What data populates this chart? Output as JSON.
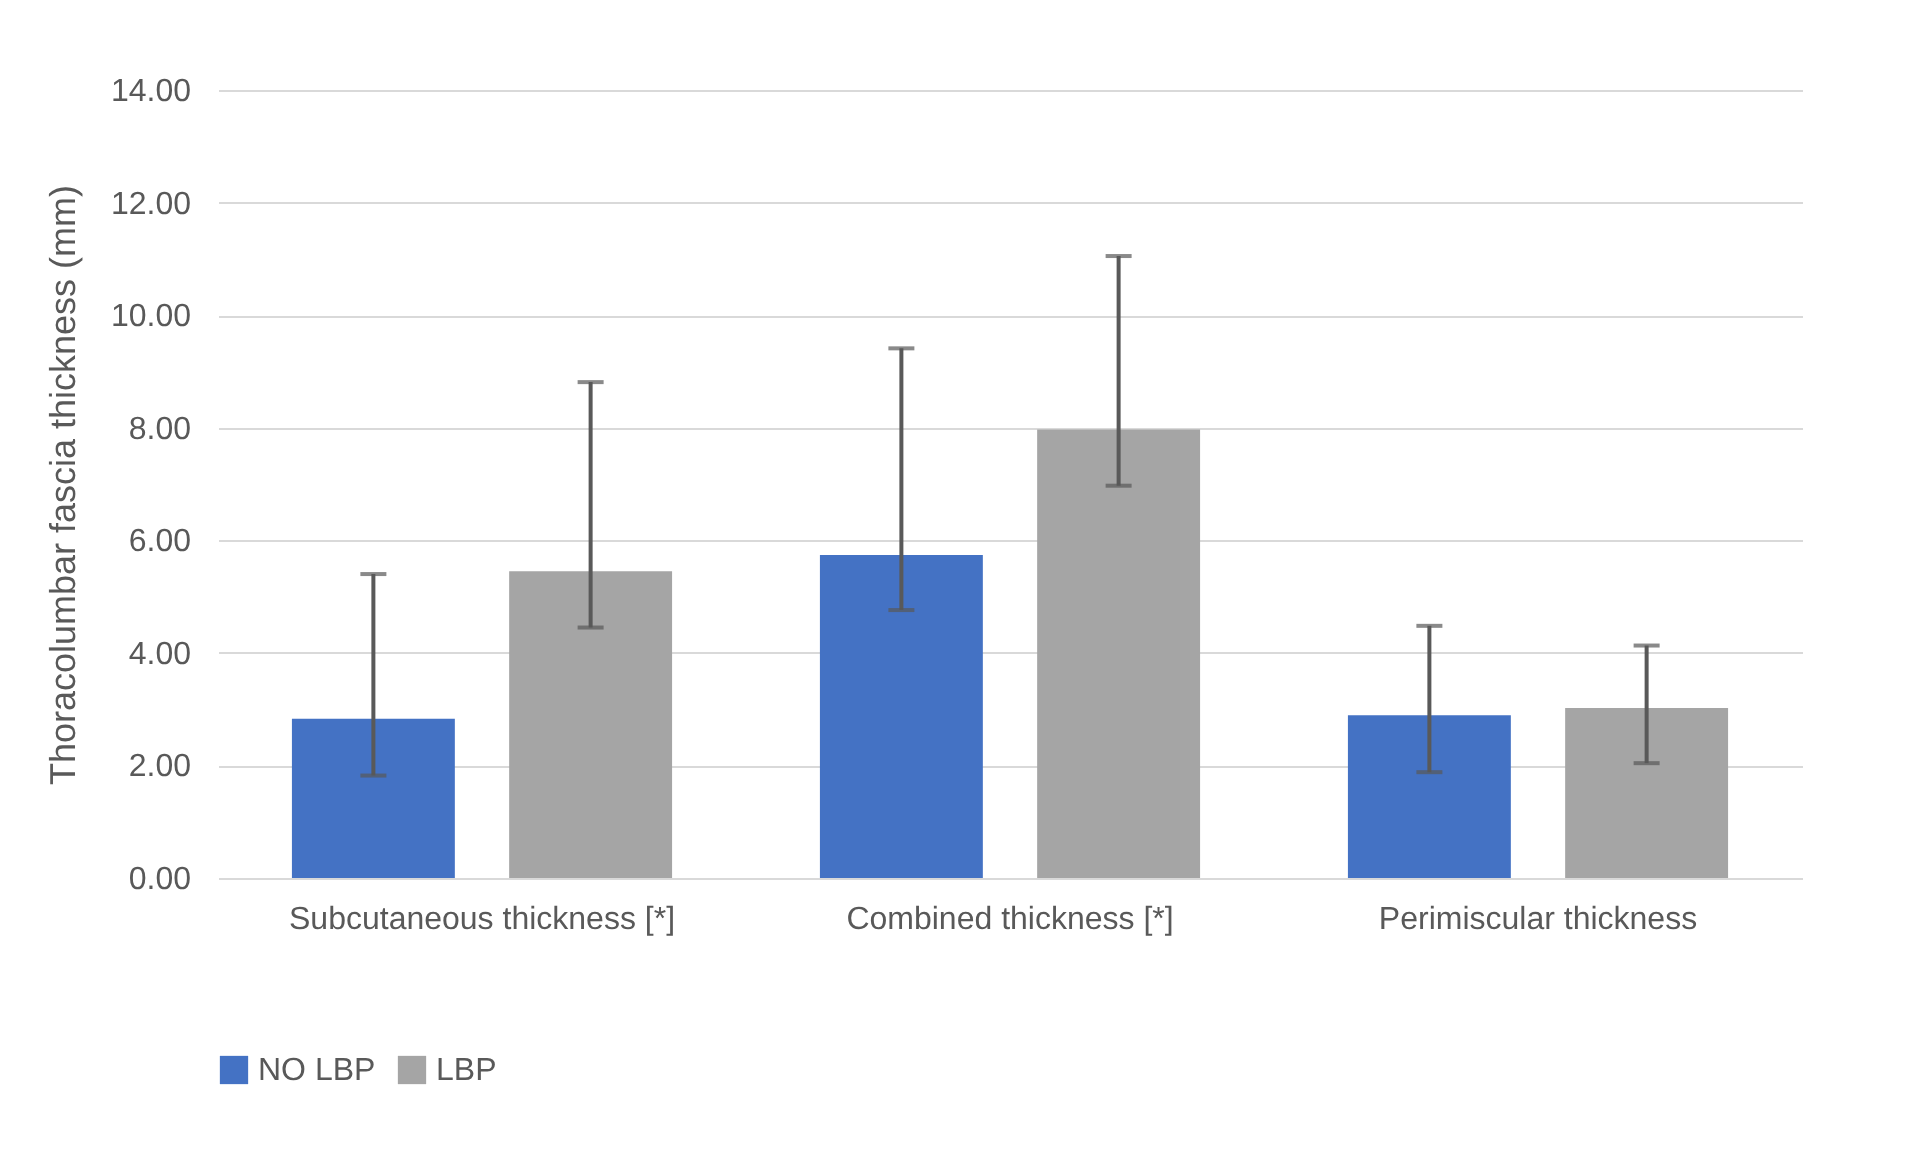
{
  "chart_data": {
    "type": "bar",
    "ylabel": "Thoracolumbar fascia thickness (mm)",
    "categories": [
      "Subcutaneous thickness [*]",
      "Combined thickness [*]",
      "Perimiscular thickness"
    ],
    "series": [
      {
        "name": "NO LBP",
        "color": "#4472c4",
        "values": [
          2.83,
          5.74,
          2.89
        ],
        "errors": [
          [
            1.82,
            5.4
          ],
          [
            4.76,
            9.41
          ],
          [
            1.88,
            4.48
          ]
        ]
      },
      {
        "name": "LBP",
        "color": "#a5a5a5",
        "values": [
          5.45,
          7.97,
          3.02
        ],
        "errors": [
          [
            4.45,
            8.81
          ],
          [
            6.97,
            11.05
          ],
          [
            2.04,
            4.13
          ]
        ]
      }
    ],
    "ylim": [
      0,
      14
    ],
    "yticks": [
      {
        "value": 0,
        "label": "0.00"
      },
      {
        "value": 2,
        "label": "2.00"
      },
      {
        "value": 4,
        "label": "4.00"
      },
      {
        "value": 6,
        "label": "6.00"
      },
      {
        "value": 8,
        "label": "8.00"
      },
      {
        "value": 10,
        "label": "10.00"
      },
      {
        "value": 12,
        "label": "12.00"
      },
      {
        "value": 14,
        "label": "14.00"
      }
    ],
    "grid": "y",
    "legend": "bottom"
  }
}
